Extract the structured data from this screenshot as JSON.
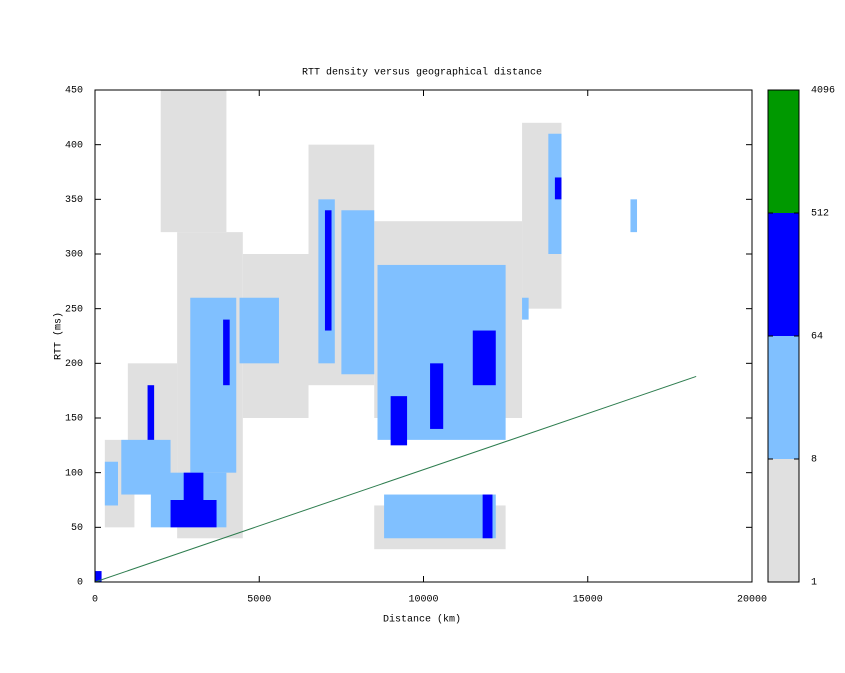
{
  "chart_data": {
    "type": "heatmap",
    "title": "RTT density versus geographical distance",
    "x_label": "Distance (km)",
    "y_label": "RTT (ms)",
    "xlim": [
      0,
      20000
    ],
    "xticks": [
      0,
      5000,
      10000,
      15000,
      20000
    ],
    "ylim": [
      0,
      450
    ],
    "yticks": [
      0,
      50,
      100,
      150,
      200,
      250,
      300,
      350,
      400,
      450
    ],
    "cells": [
      [
        300,
        1200,
        50,
        130,
        2
      ],
      [
        1000,
        2500,
        80,
        200,
        2
      ],
      [
        2500,
        4500,
        40,
        320,
        2
      ],
      [
        4500,
        6500,
        150,
        300,
        2
      ],
      [
        6500,
        8500,
        180,
        400,
        2
      ],
      [
        8500,
        13000,
        150,
        330,
        2
      ],
      [
        13000,
        14200,
        250,
        420,
        2
      ],
      [
        2000,
        4000,
        320,
        450,
        1
      ],
      [
        8500,
        12500,
        30,
        70,
        2
      ],
      [
        300,
        700,
        70,
        110,
        20
      ],
      [
        800,
        2300,
        80,
        130,
        20
      ],
      [
        1700,
        4000,
        50,
        100,
        30
      ],
      [
        2900,
        4300,
        100,
        260,
        20
      ],
      [
        4400,
        5600,
        200,
        260,
        15
      ],
      [
        6800,
        7300,
        200,
        350,
        20
      ],
      [
        7500,
        8500,
        190,
        340,
        15
      ],
      [
        8600,
        12500,
        130,
        290,
        30
      ],
      [
        13800,
        14200,
        300,
        410,
        15
      ],
      [
        8800,
        12200,
        40,
        80,
        15
      ],
      [
        13000,
        13200,
        240,
        260,
        10
      ],
      [
        16300,
        16500,
        320,
        350,
        10
      ],
      [
        2300,
        3700,
        50,
        75,
        200
      ],
      [
        2700,
        3300,
        75,
        100,
        150
      ],
      [
        7000,
        7200,
        230,
        340,
        100
      ],
      [
        9000,
        9500,
        125,
        170,
        100
      ],
      [
        11500,
        12200,
        180,
        230,
        100
      ],
      [
        1600,
        1800,
        130,
        180,
        80
      ],
      [
        3900,
        4100,
        180,
        240,
        80
      ],
      [
        10200,
        10600,
        140,
        200,
        80
      ],
      [
        0,
        200,
        0,
        10,
        100
      ],
      [
        14000,
        14200,
        350,
        370,
        80
      ],
      [
        11800,
        12100,
        40,
        80,
        80
      ]
    ],
    "line": {
      "x": [
        0,
        18300
      ],
      "y": [
        0,
        188
      ],
      "color": "#2e7d4f"
    },
    "colorbar": {
      "levels": [
        1,
        8,
        64,
        512,
        4096
      ],
      "colors": [
        "#e0e0e0",
        "#80c0ff",
        "#0000ff",
        "#009900"
      ],
      "log_scale": true
    }
  }
}
